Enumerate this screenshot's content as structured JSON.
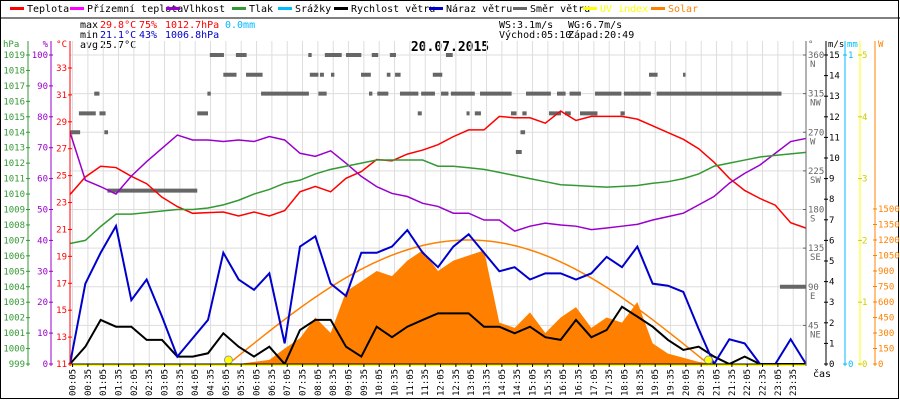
{
  "legend": [
    {
      "label": "Teplota",
      "color": "#ff0000"
    },
    {
      "label": "Přízemní teplota",
      "color": "#ff00ff"
    },
    {
      "label": "Vlhkost",
      "color": "#9900cc"
    },
    {
      "label": "Tlak",
      "color": "#339933"
    },
    {
      "label": "Srážky",
      "color": "#00bbff"
    },
    {
      "label": "Rychlost větru",
      "color": "#000000"
    },
    {
      "label": "Náraz větru",
      "color": "#0000cc"
    },
    {
      "label": "Směr větru",
      "color": "#666666"
    },
    {
      "label": "UV index",
      "color": "#ffff00"
    },
    {
      "label": "Solar",
      "color": "#ff8000"
    }
  ],
  "stats": {
    "max_label": "max",
    "max_temp": "29.8°C",
    "max_hum": "75%",
    "max_press": "1012.7hPa",
    "max_rain": "0.0mm",
    "min_label": "min",
    "min_temp": "21.1°C",
    "min_hum": "43%",
    "min_press": "1006.8hPa",
    "avg_label": "avg",
    "avg_temp": "25.7°C",
    "ws": "WS:3.1m/s",
    "wg": "WG:6.7m/s",
    "sunrise": "Východ:05:10",
    "sunset": "Západ:20:49"
  },
  "colors": {
    "max": "#ff0000",
    "min": "#0000cc",
    "rain": "#00bbff",
    "grid": "#dddddd"
  },
  "chart_data": {
    "type": "line",
    "title": "20.07.2015",
    "xlabel": "čas",
    "x_start_hour": 0,
    "x_step_hours": 0.5,
    "x_tick_labels": [
      "00:05",
      "00:35",
      "01:05",
      "01:35",
      "02:05",
      "02:35",
      "03:05",
      "03:35",
      "04:05",
      "04:35",
      "05:05",
      "05:35",
      "06:05",
      "06:35",
      "07:05",
      "07:35",
      "08:05",
      "08:35",
      "09:05",
      "09:35",
      "10:05",
      "10:35",
      "11:05",
      "11:35",
      "12:05",
      "12:35",
      "13:05",
      "13:35",
      "14:05",
      "14:35",
      "15:05",
      "15:35",
      "16:05",
      "16:35",
      "17:05",
      "17:35",
      "18:05",
      "18:35",
      "19:05",
      "19:35",
      "20:05",
      "20:35",
      "21:05",
      "21:35",
      "22:05",
      "22:35",
      "23:05",
      "23:35"
    ],
    "axes": {
      "pressure": {
        "unit": "hPa",
        "range": [
          999,
          1019
        ],
        "ticks": [
          999,
          1000,
          1001,
          1002,
          1003,
          1004,
          1005,
          1006,
          1007,
          1008,
          1009,
          1010,
          1011,
          1012,
          1013,
          1014,
          1015,
          1016,
          1017,
          1018,
          1019
        ]
      },
      "humidity": {
        "unit": "%",
        "range": [
          0,
          100
        ],
        "ticks": [
          0,
          10,
          20,
          30,
          40,
          50,
          60,
          70,
          80,
          90,
          100
        ]
      },
      "temperature": {
        "unit": "°C",
        "range": [
          11,
          34
        ],
        "ticks": [
          11,
          13,
          15,
          17,
          19,
          21,
          23,
          25,
          27,
          29,
          31,
          33
        ]
      },
      "direction": {
        "unit": "°",
        "range": [
          0,
          360
        ],
        "ticks": [
          {
            "v": 45,
            "l": "NE"
          },
          {
            "v": 90,
            "l": "E"
          },
          {
            "v": 135,
            "l": "SE"
          },
          {
            "v": 180,
            "l": "S"
          },
          {
            "v": 225,
            "l": "SW"
          },
          {
            "v": 270,
            "l": "W"
          },
          {
            "v": 315,
            "l": "NW"
          },
          {
            "v": 360,
            "l": "N"
          }
        ]
      },
      "wind": {
        "unit": "m/s",
        "range": [
          0,
          15
        ],
        "ticks": [
          0,
          1,
          2,
          3,
          4,
          5,
          6,
          7,
          8,
          9,
          10,
          11,
          12,
          13,
          14,
          15
        ]
      },
      "rain": {
        "unit": "mm",
        "range": [
          0,
          1
        ],
        "ticks": [
          0,
          1
        ]
      },
      "uv": {
        "unit": "",
        "range": [
          0,
          5
        ],
        "ticks": [
          0,
          1,
          2,
          3,
          4,
          5
        ]
      },
      "solar": {
        "unit": "W",
        "range": [
          0,
          1500
        ],
        "ticks": [
          0,
          150,
          300,
          450,
          600,
          750,
          900,
          1050,
          1200,
          1350,
          1500
        ]
      }
    },
    "series": [
      {
        "name": "Teplota",
        "axis": "temperature",
        "color": "#ff0000",
        "values": [
          23.6,
          24.9,
          25.7,
          25.6,
          24.95,
          24.4,
          23.4,
          22.7,
          22.2,
          22.25,
          22.3,
          22.0,
          22.3,
          22.0,
          22.4,
          23.8,
          24.2,
          23.8,
          24.8,
          25.3,
          26.2,
          26.1,
          26.6,
          26.9,
          27.3,
          27.9,
          28.4,
          28.4,
          29.4,
          29.3,
          29.3,
          28.9,
          29.8,
          29.1,
          29.4,
          29.4,
          29.4,
          29.2,
          28.7,
          28.2,
          27.7,
          27.0,
          26.0,
          24.8,
          23.9,
          23.3,
          22.8,
          21.5,
          21.1
        ]
      },
      {
        "name": "Vlhkost",
        "axis": "humidity",
        "color": "#9900cc",
        "values": [
          75,
          59.5,
          57.4,
          55,
          60.8,
          65.5,
          69.8,
          74.1,
          72.5,
          72.5,
          72,
          72.5,
          72,
          73.6,
          72.5,
          68.2,
          67.2,
          69,
          65,
          60.7,
          57.4,
          55.2,
          54.2,
          52.0,
          51,
          48.8,
          48.8,
          46.6,
          46.6,
          43,
          44.6,
          45.6,
          45,
          44.6,
          43.5,
          44,
          44.6,
          45.2,
          46.6,
          47.7,
          48.8,
          51.5,
          54.2,
          58.5,
          61.7,
          64.4,
          68.2,
          72,
          73
        ]
      },
      {
        "name": "Tlak",
        "axis": "pressure",
        "color": "#339933",
        "values": [
          1006.8,
          1007.0,
          1007.9,
          1008.7,
          1008.7,
          1008.8,
          1008.9,
          1009.0,
          1009.0,
          1009.1,
          1009.3,
          1009.6,
          1010.0,
          1010.3,
          1010.7,
          1010.9,
          1011.3,
          1011.6,
          1011.8,
          1012.0,
          1012.2,
          1012.2,
          1012.2,
          1012.2,
          1011.8,
          1011.8,
          1011.7,
          1011.6,
          1011.4,
          1011.2,
          1011.0,
          1010.8,
          1010.6,
          1010.55,
          1010.5,
          1010.45,
          1010.5,
          1010.55,
          1010.7,
          1010.8,
          1011.0,
          1011.3,
          1011.8,
          1012.0,
          1012.2,
          1012.4,
          1012.5,
          1012.6,
          1012.7
        ]
      },
      {
        "name": "Rychlost větru",
        "axis": "wind",
        "color": "#000000",
        "values": [
          0,
          0.84,
          2.14,
          1.81,
          1.81,
          1.17,
          1.17,
          0.36,
          0.36,
          0.52,
          1.49,
          0.84,
          0.36,
          0.84,
          0,
          1.65,
          2.14,
          2.14,
          0.84,
          0.36,
          1.81,
          1.3,
          1.81,
          2.14,
          2.46,
          2.46,
          2.46,
          1.81,
          1.81,
          1.49,
          1.81,
          1.3,
          1.17,
          2.14,
          1.3,
          1.65,
          2.78,
          2.3,
          1.81,
          1.17,
          0.68,
          0.84,
          0.36,
          0,
          0.36,
          0,
          0,
          0,
          0
        ]
      },
      {
        "name": "Náraz větru",
        "axis": "wind",
        "color": "#0000cc",
        "values": [
          0,
          3.9,
          5.4,
          6.7,
          3.1,
          4.1,
          2.3,
          0.36,
          1.25,
          2.14,
          5.4,
          4.1,
          3.6,
          4.4,
          1.0,
          5.7,
          6.2,
          3.9,
          3.3,
          5.4,
          5.4,
          5.7,
          6.5,
          5.4,
          4.7,
          5.7,
          6.3,
          5.4,
          4.5,
          4.7,
          4.1,
          4.4,
          4.4,
          4.1,
          4.4,
          5.2,
          4.7,
          5.7,
          3.9,
          3.8,
          3.5,
          1.7,
          0,
          1.2,
          1.0,
          0,
          0,
          1.2,
          0
        ]
      },
      {
        "name": "Solar",
        "axis": "solar",
        "color": "#ff8000",
        "type": "area",
        "values": [
          0,
          0,
          0,
          0,
          0,
          0,
          0,
          0,
          0,
          0,
          0,
          0,
          20,
          40,
          150,
          250,
          450,
          300,
          700,
          800,
          900,
          850,
          1000,
          1100,
          900,
          1000,
          1050,
          1100,
          400,
          350,
          500,
          300,
          450,
          550,
          350,
          450,
          400,
          600,
          200,
          100,
          60,
          20,
          0,
          0,
          0,
          0,
          0,
          0,
          0
        ]
      }
    ],
    "solar_theoretical_max": 1200,
    "wind_direction_segments": [
      [
        4.56,
        5.02,
        360
      ],
      [
        5.41,
        5.76,
        360
      ],
      [
        7.77,
        7.88,
        360
      ],
      [
        8.31,
        8.86,
        360
      ],
      [
        9.0,
        9.5,
        360
      ],
      [
        9.84,
        10.05,
        360
      ],
      [
        10.43,
        10.63,
        360
      ],
      [
        12.26,
        12.48,
        360
      ],
      [
        5.0,
        5.43,
        337
      ],
      [
        5.74,
        6.28,
        337
      ],
      [
        7.82,
        8.1,
        337
      ],
      [
        8.15,
        8.28,
        337
      ],
      [
        8.51,
        8.62,
        337
      ],
      [
        9.49,
        9.81,
        337
      ],
      [
        10.33,
        10.45,
        337
      ],
      [
        10.6,
        10.78,
        337
      ],
      [
        11.83,
        12.14,
        337
      ],
      [
        18.88,
        19.16,
        337
      ],
      [
        19.99,
        20.07,
        337
      ],
      [
        0.79,
        0.96,
        315
      ],
      [
        4.48,
        4.59,
        315
      ],
      [
        6.23,
        7.79,
        315
      ],
      [
        8.1,
        8.37,
        315
      ],
      [
        9.75,
        9.86,
        315
      ],
      [
        10.02,
        10.38,
        315
      ],
      [
        10.76,
        11.36,
        315
      ],
      [
        11.45,
        11.9,
        315
      ],
      [
        12.1,
        12.34,
        315
      ],
      [
        12.42,
        13.2,
        315
      ],
      [
        13.37,
        14.4,
        315
      ],
      [
        14.87,
        15.68,
        315
      ],
      [
        15.88,
        16.16,
        315
      ],
      [
        16.29,
        16.66,
        315
      ],
      [
        17.12,
        17.98,
        315
      ],
      [
        18.06,
        18.94,
        315
      ],
      [
        19.13,
        23.2,
        315
      ],
      [
        0.29,
        0.84,
        292
      ],
      [
        0.96,
        1.16,
        292
      ],
      [
        4.15,
        4.5,
        292
      ],
      [
        11.34,
        11.47,
        292
      ],
      [
        12.93,
        13.03,
        292
      ],
      [
        13.2,
        13.4,
        292
      ],
      [
        14.38,
        14.56,
        292
      ],
      [
        14.75,
        14.89,
        292
      ],
      [
        15.62,
        16.01,
        292
      ],
      [
        16.14,
        16.33,
        292
      ],
      [
        16.63,
        17.2,
        292
      ],
      [
        17.95,
        18.09,
        292
      ],
      [
        0.0,
        0.33,
        270
      ],
      [
        1.12,
        1.24,
        270
      ],
      [
        14.69,
        14.84,
        270
      ],
      [
        14.54,
        14.73,
        247
      ],
      [
        1.22,
        4.15,
        202
      ],
      [
        23.15,
        24.0,
        90
      ],
      [
        8.86,
        8.94,
        21
      ]
    ]
  }
}
